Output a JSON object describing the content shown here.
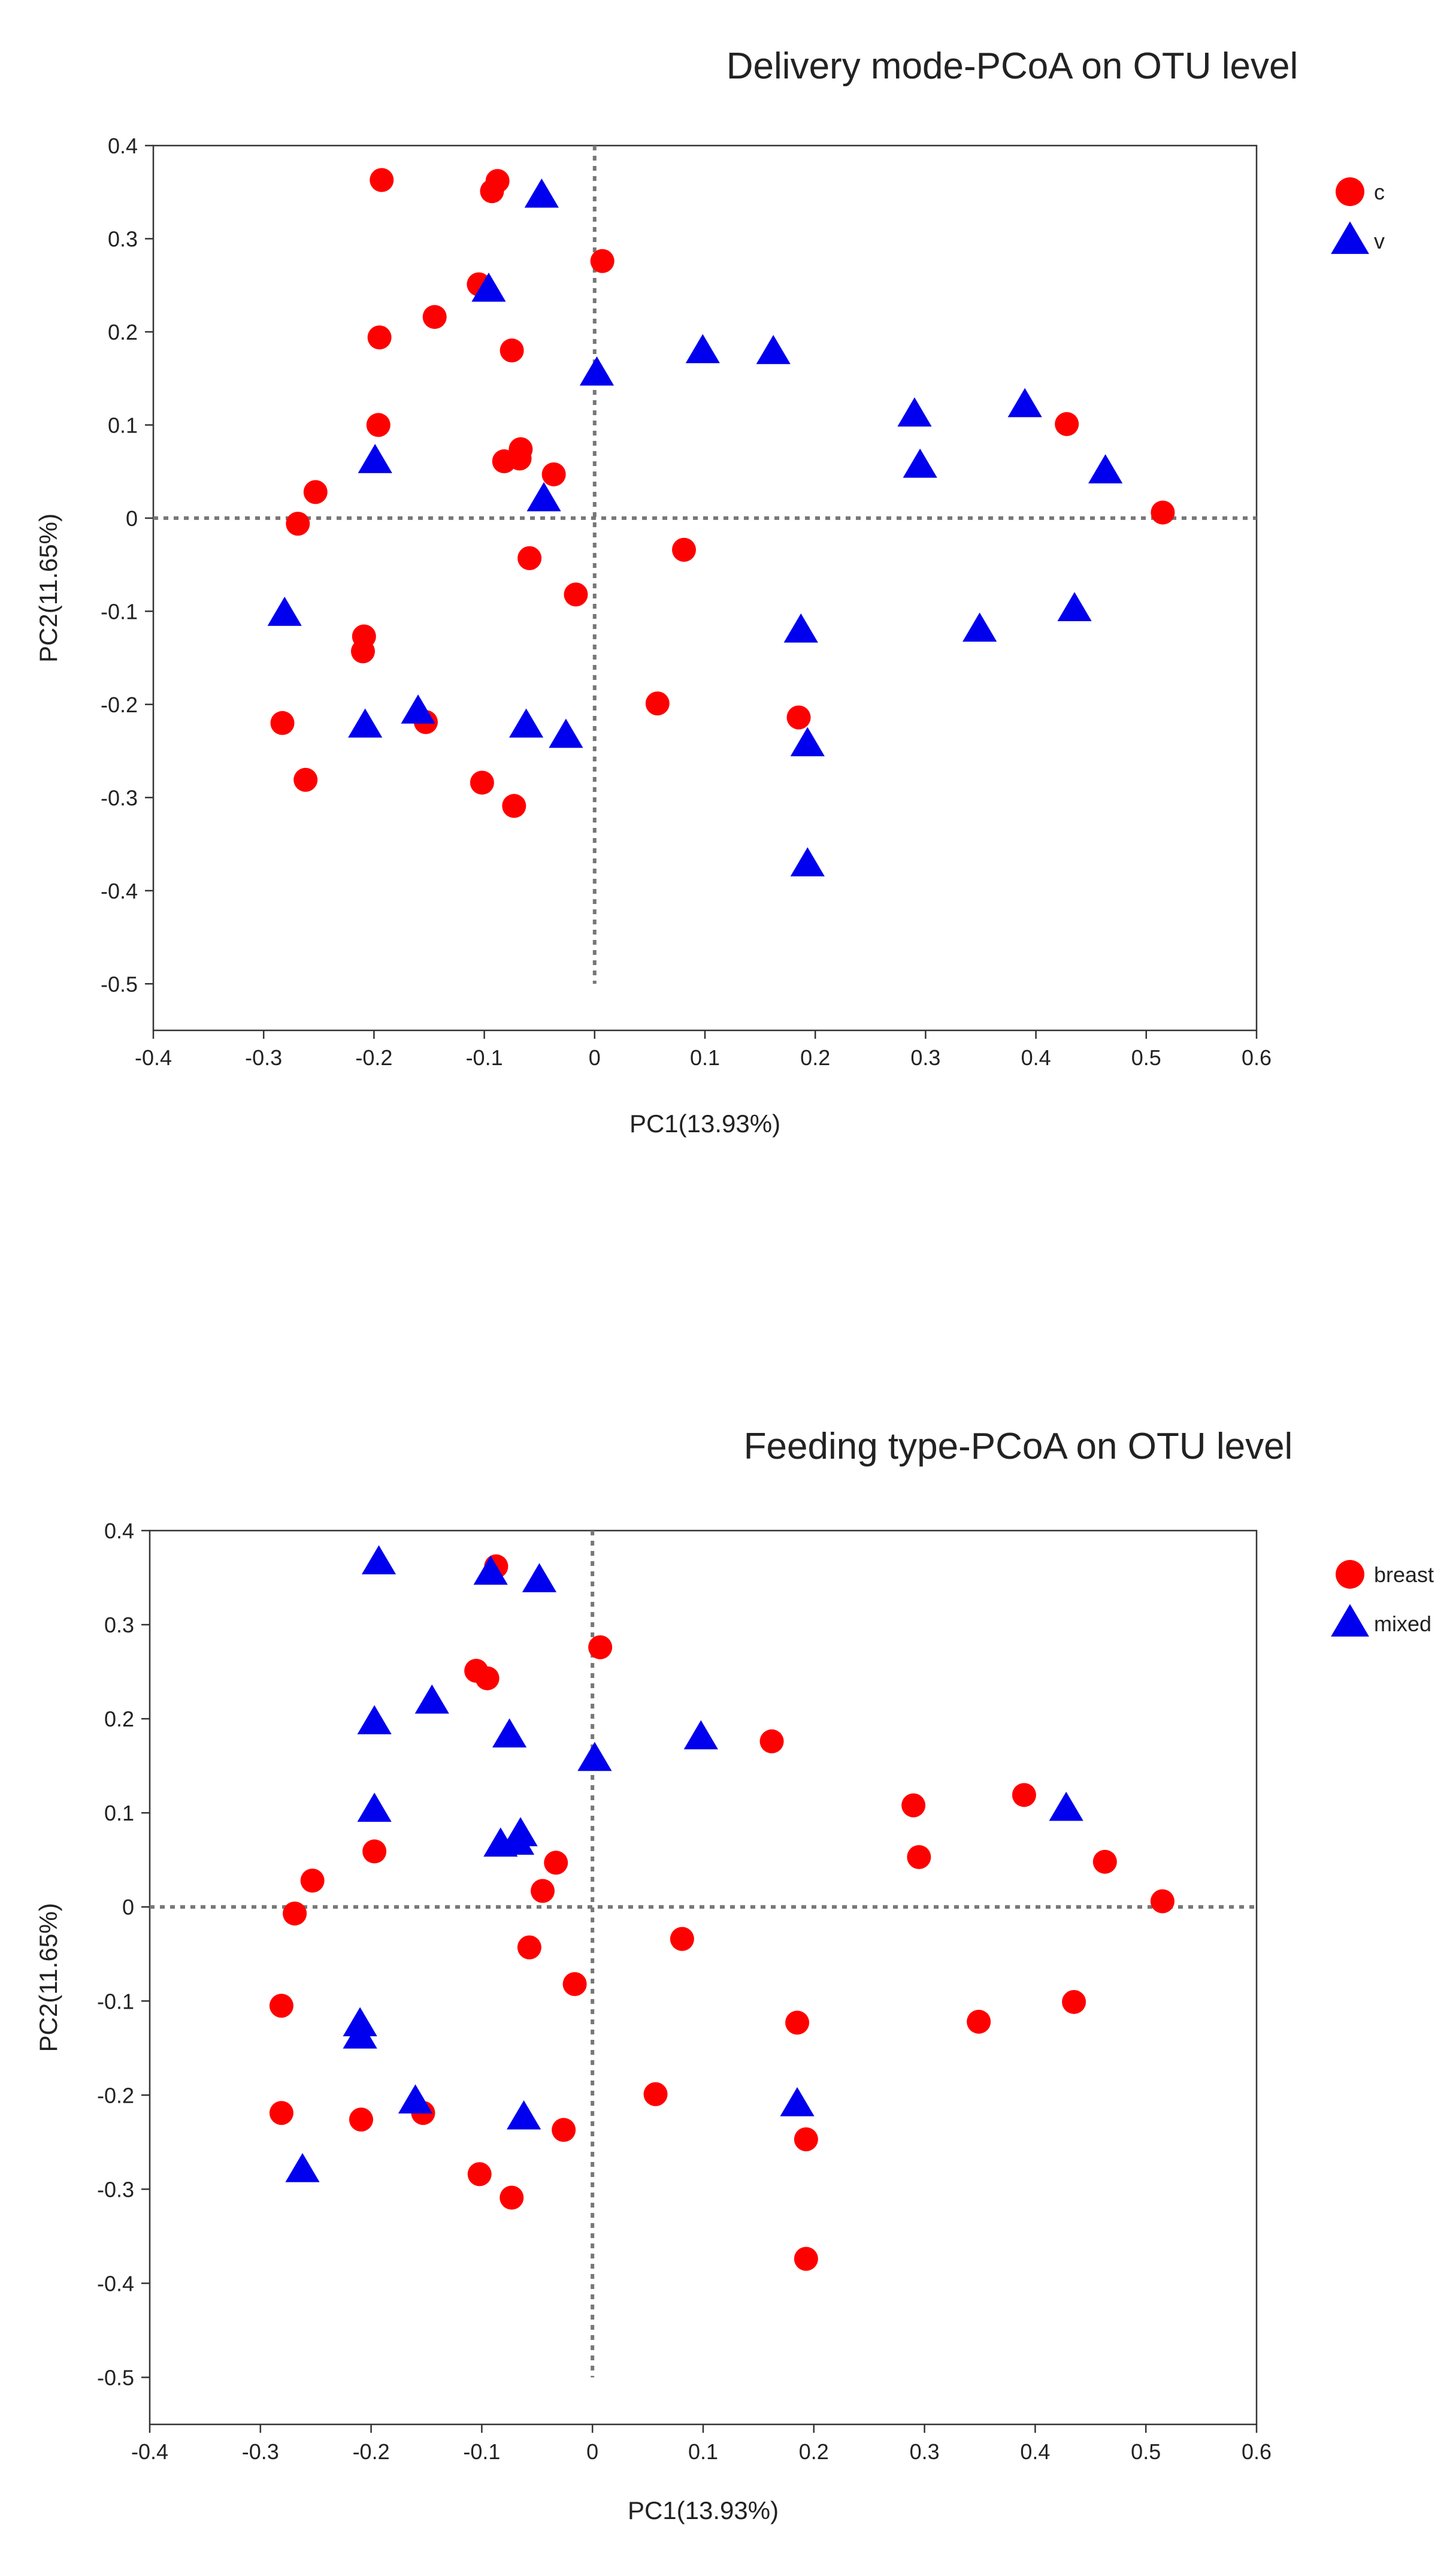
{
  "chart_data": [
    {
      "type": "scatter",
      "title": "Delivery mode-PCoA on OTU level",
      "xlabel": "PC1(13.93%)",
      "ylabel": "PC2(11.65%)",
      "xlim": [
        -0.4,
        0.6
      ],
      "ylim": [
        -0.55,
        0.4
      ],
      "xticks": [
        "-0.4",
        "-0.3",
        "-0.2",
        "-0.1",
        "0",
        "0.1",
        "0.2",
        "0.3",
        "0.4",
        "0.5",
        "0.6"
      ],
      "yticks": [
        "0.4",
        "0.3",
        "0.2",
        "0.1",
        "0",
        "-0.1",
        "-0.2",
        "-0.3",
        "-0.4",
        "-0.5"
      ],
      "reference_lines": {
        "x": 0,
        "y": 0
      },
      "legend_position": "top-right",
      "series": [
        {
          "name": "c",
          "marker": "circle",
          "color": "#ff0000",
          "x": [
            -0.193,
            -0.088,
            -0.093,
            0.007,
            -0.105,
            -0.145,
            -0.195,
            -0.075,
            -0.196,
            -0.067,
            -0.068,
            -0.082,
            -0.037,
            -0.253,
            -0.269,
            -0.059,
            -0.017,
            0.081,
            -0.209,
            -0.21,
            -0.283,
            -0.153,
            0.057,
            0.185,
            -0.262,
            -0.102,
            -0.073,
            0.428,
            0.515
          ],
          "y": [
            0.363,
            0.362,
            0.351,
            0.276,
            0.251,
            0.216,
            0.194,
            0.18,
            0.1,
            0.074,
            0.064,
            0.061,
            0.047,
            0.028,
            -0.006,
            -0.043,
            -0.082,
            -0.034,
            -0.127,
            -0.143,
            -0.22,
            -0.219,
            -0.199,
            -0.214,
            -0.281,
            -0.284,
            -0.309,
            0.101,
            0.006
          ]
        },
        {
          "name": "v",
          "marker": "triangle",
          "color": "#0000ee",
          "x": [
            -0.048,
            -0.096,
            0.002,
            0.098,
            0.162,
            0.29,
            0.39,
            0.295,
            0.463,
            -0.199,
            -0.046,
            -0.281,
            0.187,
            0.349,
            0.435,
            -0.16,
            -0.208,
            -0.062,
            -0.026,
            0.193,
            0.193
          ],
          "y": [
            0.346,
            0.245,
            0.155,
            0.179,
            0.178,
            0.111,
            0.121,
            0.056,
            0.05,
            0.061,
            0.02,
            -0.103,
            -0.121,
            -0.12,
            -0.098,
            -0.208,
            -0.223,
            -0.223,
            -0.234,
            -0.243,
            -0.372
          ]
        }
      ]
    },
    {
      "type": "scatter",
      "title": "Feeding type-PCoA on OTU level",
      "xlabel": "PC1(13.93%)",
      "ylabel": "PC2(11.65%)",
      "xlim": [
        -0.4,
        0.6
      ],
      "ylim": [
        -0.55,
        0.4
      ],
      "xticks": [
        "-0.4",
        "-0.3",
        "-0.2",
        "-0.1",
        "0",
        "0.1",
        "0.2",
        "0.3",
        "0.4",
        "0.5",
        "0.6"
      ],
      "yticks": [
        "0.4",
        "0.3",
        "0.2",
        "0.1",
        "0",
        "-0.1",
        "-0.2",
        "-0.3",
        "-0.4",
        "-0.5"
      ],
      "reference_lines": {
        "x": 0,
        "y": 0
      },
      "legend_position": "top-right",
      "series": [
        {
          "name": "breast",
          "marker": "circle",
          "color": "#ff0000",
          "x": [
            -0.087,
            0.007,
            -0.105,
            -0.095,
            0.162,
            0.29,
            0.39,
            0.295,
            0.463,
            0.515,
            -0.197,
            -0.033,
            -0.253,
            -0.045,
            -0.269,
            -0.057,
            0.081,
            -0.016,
            -0.281,
            0.185,
            0.349,
            0.435,
            -0.281,
            -0.209,
            -0.153,
            0.057,
            0.193,
            -0.102,
            -0.073,
            -0.026,
            0.193
          ],
          "y": [
            0.362,
            0.276,
            0.251,
            0.243,
            0.176,
            0.108,
            0.119,
            0.053,
            0.048,
            0.006,
            0.059,
            0.047,
            0.028,
            0.017,
            -0.007,
            -0.043,
            -0.034,
            -0.082,
            -0.105,
            -0.123,
            -0.122,
            -0.101,
            -0.219,
            -0.226,
            -0.219,
            -0.199,
            -0.247,
            -0.284,
            -0.309,
            -0.237,
            -0.374
          ]
        },
        {
          "name": "mixed",
          "marker": "triangle",
          "color": "#0000ee",
          "x": [
            -0.193,
            -0.092,
            -0.048,
            -0.197,
            -0.145,
            -0.075,
            0.002,
            0.098,
            -0.197,
            -0.083,
            -0.065,
            -0.068,
            0.428,
            -0.21,
            -0.21,
            -0.16,
            -0.262,
            -0.062,
            0.185
          ],
          "y": [
            0.366,
            0.355,
            0.347,
            0.196,
            0.218,
            0.182,
            0.157,
            0.18,
            0.103,
            0.066,
            0.077,
            0.068,
            0.104,
            -0.125,
            -0.138,
            -0.207,
            -0.28,
            -0.224,
            -0.21
          ]
        }
      ]
    }
  ]
}
